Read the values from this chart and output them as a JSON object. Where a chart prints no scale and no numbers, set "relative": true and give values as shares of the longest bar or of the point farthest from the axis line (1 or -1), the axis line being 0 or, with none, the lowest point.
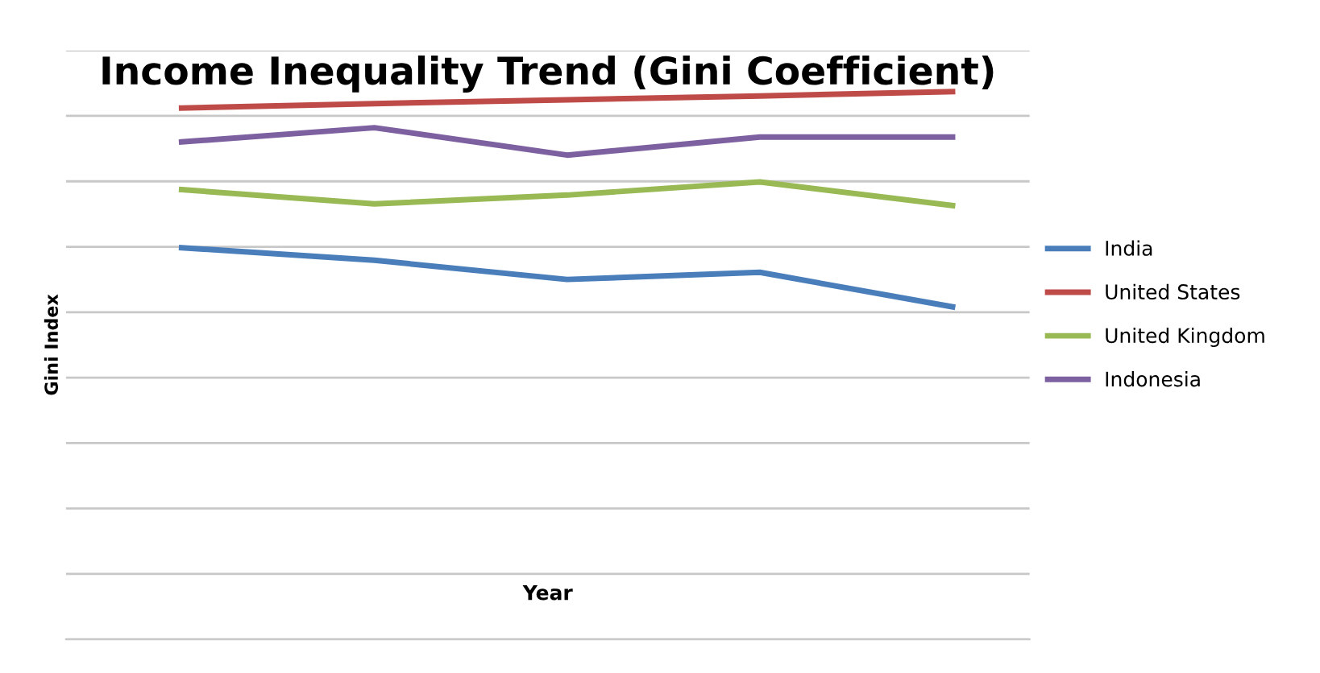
{
  "chart_data": {
    "type": "line",
    "title": "Income Inequality Trend (Gini Coefficient)",
    "xlabel": "Year",
    "ylabel": "Gini Index",
    "categories": [
      null,
      null,
      null,
      null,
      null
    ],
    "relative": true,
    "grid": "y",
    "legend": "right",
    "marker": "none",
    "line_style": "solid",
    "series": [
      {
        "name": "India",
        "color": "#4a7ebb",
        "values": [
          0.715,
          0.692,
          0.657,
          0.67,
          0.607
        ]
      },
      {
        "name": "United States",
        "color": "#be4b48",
        "values": [
          0.97,
          0.978,
          0.985,
          0.992,
          1.0
        ]
      },
      {
        "name": "United Kingdom",
        "color": "#98b954",
        "values": [
          0.821,
          0.795,
          0.811,
          0.835,
          0.792
        ]
      },
      {
        "name": "Indonesia",
        "color": "#7d60a0",
        "values": [
          0.908,
          0.934,
          0.884,
          0.917,
          0.917
        ]
      }
    ]
  }
}
